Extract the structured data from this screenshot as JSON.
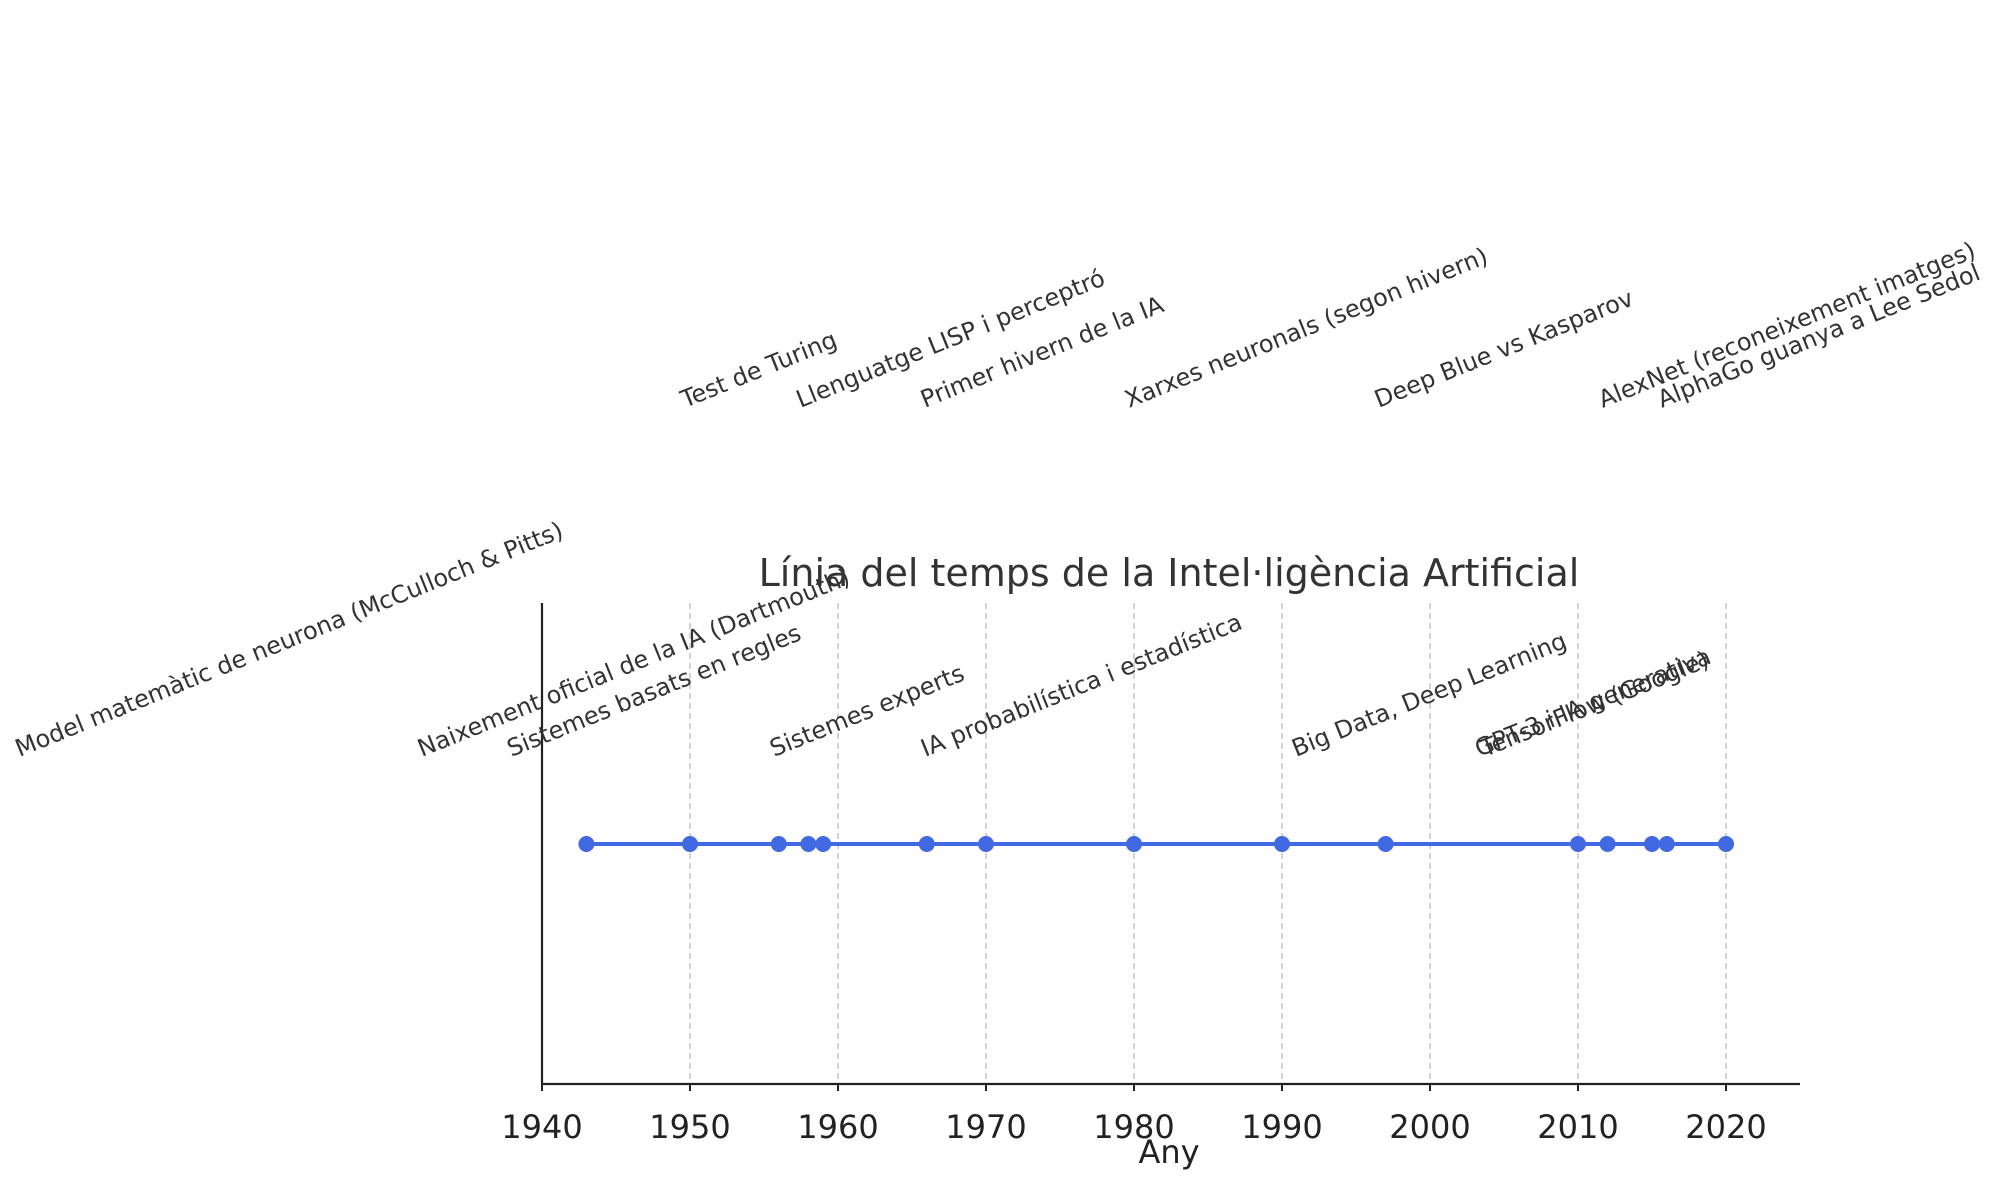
{
  "chart_data": {
    "type": "line",
    "title": "Línia del temps de la Intel·ligència Artificial",
    "xlabel": "Any",
    "ylabel": "",
    "xlim": [
      1940,
      2025
    ],
    "xticks": [
      1940,
      1950,
      1960,
      1970,
      1980,
      1990,
      2000,
      2010,
      2020
    ],
    "grid": "vertical dashed lines at each x tick",
    "legend": "none",
    "line_color": "#4169e1",
    "point_color": "#4169e1",
    "events": [
      {
        "year": 1943,
        "label": "Model matemàtic de neurona (McCulloch & Pitts)",
        "row": "low"
      },
      {
        "year": 1950,
        "label": "Test de Turing",
        "row": "high"
      },
      {
        "year": 1956,
        "label": "Naixement oficial de la IA (Dartmouth)",
        "row": "low"
      },
      {
        "year": 1958,
        "label": "Llenguatge LISP i perceptró",
        "row": "high"
      },
      {
        "year": 1959,
        "label": "Sistemes basats en regles",
        "row": "low"
      },
      {
        "year": 1966,
        "label": "Primer hivern de la IA",
        "row": "high"
      },
      {
        "year": 1970,
        "label": "Sistemes experts",
        "row": "low"
      },
      {
        "year": 1980,
        "label": "Xarxes neuronals (segon hivern)",
        "row": "high"
      },
      {
        "year": 1990,
        "label": "IA probabilística i estadística",
        "row": "low"
      },
      {
        "year": 1997,
        "label": "Deep Blue vs Kasparov",
        "row": "high"
      },
      {
        "year": 2010,
        "label": "Big Data, Deep Learning",
        "row": "low"
      },
      {
        "year": 2012,
        "label": "AlexNet (reconeixement imatges)",
        "row": "high"
      },
      {
        "year": 2015,
        "label": "TensorFlow (Google)",
        "row": "low"
      },
      {
        "year": 2016,
        "label": "AlphaGo guanya a Lee Sedol",
        "row": "high"
      },
      {
        "year": 2020,
        "label": "GPT-3 i IA generativa",
        "row": "low"
      }
    ]
  }
}
